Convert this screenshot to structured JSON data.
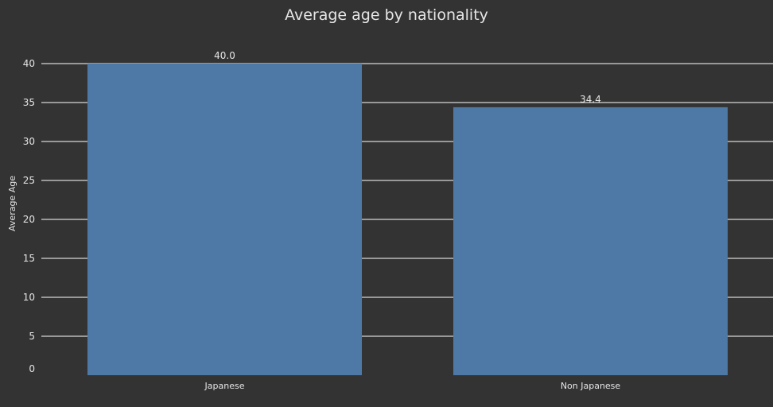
{
  "chart_data": {
    "type": "bar",
    "title": "Average age by nationality",
    "xlabel": "",
    "ylabel": "Average Age",
    "categories": [
      "Japanese",
      "Non Japanese"
    ],
    "values": [
      40.0,
      34.4
    ],
    "data_labels": [
      "40.0",
      "34.4"
    ],
    "yticks": [
      0,
      5,
      10,
      15,
      20,
      25,
      30,
      35,
      40
    ],
    "ylim": [
      0,
      40
    ],
    "grid": true,
    "colors": {
      "background": "#333333",
      "bar": "#4e79a7",
      "grid": "#ffffff",
      "text": "#e6e6e6"
    }
  }
}
